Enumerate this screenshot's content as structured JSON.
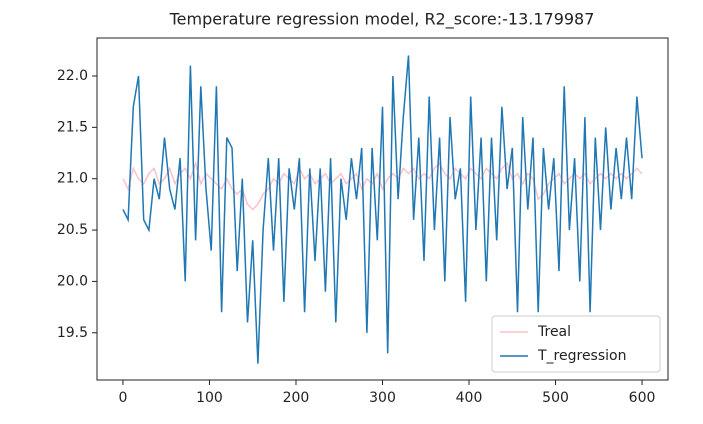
{
  "chart_data": {
    "type": "line",
    "title": "Temperature regression model, R2_score:-13.179987",
    "x": [
      0,
      6,
      12,
      18,
      24,
      30,
      36,
      42,
      48,
      54,
      60,
      66,
      72,
      78,
      84,
      90,
      96,
      102,
      108,
      114,
      120,
      126,
      132,
      138,
      144,
      150,
      156,
      162,
      168,
      174,
      180,
      186,
      192,
      198,
      204,
      210,
      216,
      222,
      228,
      234,
      240,
      246,
      252,
      258,
      264,
      270,
      276,
      282,
      288,
      294,
      300,
      306,
      312,
      318,
      324,
      330,
      336,
      342,
      348,
      354,
      360,
      366,
      372,
      378,
      384,
      390,
      396,
      402,
      408,
      414,
      420,
      426,
      432,
      438,
      444,
      450,
      456,
      462,
      468,
      474,
      480,
      486,
      492,
      498,
      504,
      510,
      516,
      522,
      528,
      534,
      540,
      546,
      552,
      558,
      564,
      570,
      576,
      582,
      588,
      594,
      600
    ],
    "series": [
      {
        "name": "Treal",
        "color": "#ffc0cb",
        "values": [
          21.0,
          20.9,
          21.1,
          21.0,
          20.95,
          21.05,
          21.1,
          20.95,
          21.0,
          21.1,
          20.95,
          21.05,
          21.1,
          21.0,
          21.15,
          20.95,
          21.05,
          21.0,
          20.95,
          20.9,
          21.0,
          20.9,
          20.85,
          20.9,
          20.75,
          20.7,
          20.75,
          20.85,
          20.9,
          21.0,
          20.95,
          21.05,
          21.0,
          20.95,
          21.1,
          21.0,
          21.05,
          20.95,
          21.0,
          21.05,
          20.95,
          21.0,
          21.05,
          20.95,
          21.0,
          21.05,
          20.9,
          21.0,
          20.95,
          21.05,
          20.9,
          21.0,
          21.05,
          21.0,
          21.1,
          21.05,
          21.1,
          21.0,
          21.05,
          21.0,
          21.1,
          21.15,
          21.05,
          21.0,
          21.1,
          21.05,
          21.0,
          21.1,
          21.05,
          21.0,
          21.1,
          21.05,
          21.0,
          21.1,
          21.15,
          21.0,
          21.05,
          20.95,
          21.05,
          21.0,
          20.8,
          20.85,
          20.95,
          21.0,
          21.05,
          20.95,
          21.0,
          21.05,
          21.0,
          21.05,
          20.95,
          21.0,
          21.05,
          21.0,
          21.05,
          21.0,
          21.05,
          21.0,
          21.05,
          21.1,
          21.05
        ]
      },
      {
        "name": "T_regression",
        "color": "#1f77b4",
        "values": [
          20.7,
          20.6,
          21.7,
          22.0,
          20.6,
          20.5,
          21.0,
          20.8,
          21.4,
          20.9,
          20.7,
          21.2,
          20.0,
          22.1,
          20.4,
          21.9,
          20.9,
          20.3,
          21.9,
          19.7,
          21.4,
          21.3,
          20.1,
          21.0,
          19.6,
          20.4,
          19.2,
          20.5,
          21.2,
          20.3,
          21.2,
          19.8,
          21.1,
          20.7,
          21.2,
          19.7,
          21.1,
          20.2,
          21.1,
          19.9,
          21.2,
          19.6,
          21.0,
          20.6,
          21.2,
          20.8,
          21.3,
          19.5,
          21.3,
          20.4,
          21.7,
          19.3,
          22.0,
          20.8,
          21.6,
          22.2,
          20.6,
          21.4,
          20.2,
          21.8,
          20.5,
          21.4,
          20.0,
          21.6,
          20.8,
          21.1,
          19.8,
          21.8,
          20.5,
          21.4,
          20.0,
          21.4,
          20.4,
          21.7,
          20.9,
          21.3,
          19.7,
          21.6,
          20.7,
          21.4,
          19.7,
          21.3,
          20.7,
          21.2,
          20.1,
          21.9,
          20.5,
          21.2,
          20.0,
          21.6,
          19.7,
          21.4,
          20.5,
          21.5,
          20.7,
          21.3,
          20.8,
          21.4,
          20.8,
          21.8,
          21.2
        ]
      }
    ],
    "xlim": [
      -30,
      630
    ],
    "ylim": [
      19.04,
      22.37
    ],
    "xticks": [
      0,
      100,
      200,
      300,
      400,
      500,
      600
    ],
    "yticks": [
      19.5,
      {
        "value": 20,
        "label": "20.0"
      },
      20.5,
      {
        "value": 21,
        "label": "21.0"
      },
      21.5,
      {
        "value": 22,
        "label": "22.0"
      }
    ],
    "legend": "lower right"
  }
}
